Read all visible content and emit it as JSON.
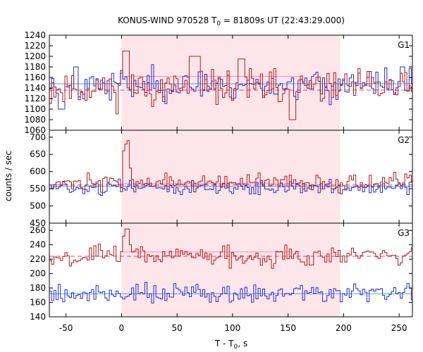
{
  "chart_data": {
    "type": "line",
    "title": "KONUS-WIND 970528 T0 = 81809s UT (22:43:29.000)",
    "title_parts": {
      "pre": "KONUS-WIND 970528 T",
      "sub": "0",
      "post": " = 81809s UT (22:43:29.000)"
    },
    "xlabel": "T - T0, s",
    "xlabel_parts": {
      "pre": "T - T",
      "sub": "0",
      "post": ", s"
    },
    "ylabel": "counts / sec",
    "xlim": [
      -65,
      262
    ],
    "xticks": [
      -50,
      0,
      50,
      100,
      150,
      200,
      250
    ],
    "shaded_interval": [
      0,
      197
    ],
    "bin_width": 2,
    "colors": {
      "red": "#b01b1b",
      "blue": "#2b2bc8",
      "red_level": "#e0407a",
      "blue_level": "#44aadd",
      "pink_trigger": "#f08ccc",
      "shade": "#fde6ea"
    },
    "panels": [
      {
        "name": "G1",
        "ylim": [
          1060,
          1240
        ],
        "yticks": [
          1060,
          1080,
          1100,
          1120,
          1140,
          1160,
          1180,
          1200,
          1220,
          1240
        ],
        "red_background": 1136,
        "blue_background": 1148,
        "trigger_level": 1162,
        "red": {
          "mean": 1140,
          "sd": 16,
          "seed": 11,
          "peaks": [
            [
              0,
              6,
              1210
            ],
            [
              60,
              70,
              1200
            ],
            [
              105,
              111,
              1195
            ],
            [
              150,
              156,
              1080
            ]
          ]
        },
        "blue": {
          "mean": 1146,
          "sd": 14,
          "seed": 23,
          "peaks": [
            [
              -57,
              -52,
              1100
            ],
            [
              -44,
              -40,
              1180
            ],
            [
              250,
              254,
              1180
            ]
          ]
        }
      },
      {
        "name": "G2",
        "ylim": [
          450,
          720
        ],
        "yticks": [
          450,
          500,
          550,
          600,
          650,
          700
        ],
        "red_background": 561,
        "blue_background": 557,
        "trigger_level": 565,
        "red": {
          "mean": 568,
          "sd": 11,
          "seed": 37,
          "peaks": [
            [
              0,
              2,
              660
            ],
            [
              2,
              4,
              680
            ],
            [
              4,
              6,
              690
            ],
            [
              6,
              8,
              610
            ]
          ]
        },
        "blue": {
          "mean": 553,
          "sd": 10,
          "seed": 51,
          "peaks": []
        }
      },
      {
        "name": "G3",
        "ylim": [
          140,
          270
        ],
        "yticks": [
          140,
          160,
          180,
          200,
          220,
          240,
          260
        ],
        "red_background": 224,
        "blue_background": 172,
        "trigger_level": 230,
        "red": {
          "mean": 225,
          "sd": 7,
          "seed": 67,
          "peaks": [
            [
              0,
              2,
              252
            ],
            [
              2,
              6,
              262
            ],
            [
              6,
              8,
              240
            ]
          ]
        },
        "blue": {
          "mean": 173,
          "sd": 7,
          "seed": 79,
          "peaks": []
        }
      }
    ]
  }
}
